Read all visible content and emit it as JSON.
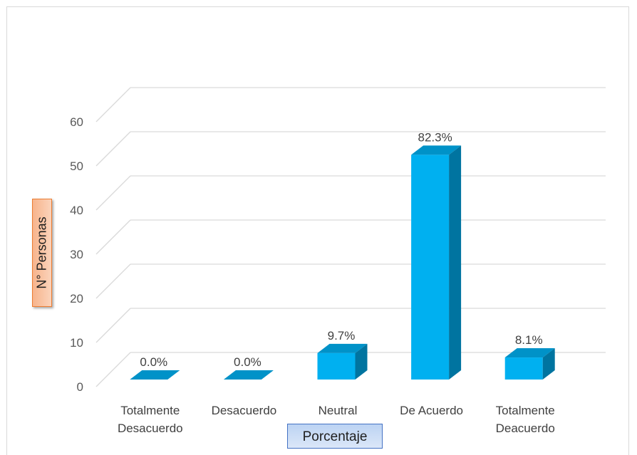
{
  "chart_data": {
    "type": "bar",
    "style": "3d-column",
    "categories": [
      [
        "Totalmente",
        "Desacuerdo"
      ],
      [
        "Desacuerdo"
      ],
      [
        "Neutral"
      ],
      [
        "De Acuerdo"
      ],
      [
        "Totalmente",
        "Deacuerdo"
      ]
    ],
    "values": [
      0,
      0,
      6,
      51,
      5
    ],
    "data_labels": [
      "0.0%",
      "0.0%",
      "9.7%",
      "82.3%",
      "8.1%"
    ],
    "xlabel": "Porcentaje",
    "ylabel": "N° Personas",
    "ylim": [
      0,
      60
    ],
    "yticks": [
      0,
      10,
      20,
      30,
      40,
      50,
      60
    ],
    "grid": true,
    "colors": {
      "front": "#00b0f0",
      "side": "#0074a0",
      "top": "#0092c8",
      "grid": "#d9d9d9"
    }
  }
}
